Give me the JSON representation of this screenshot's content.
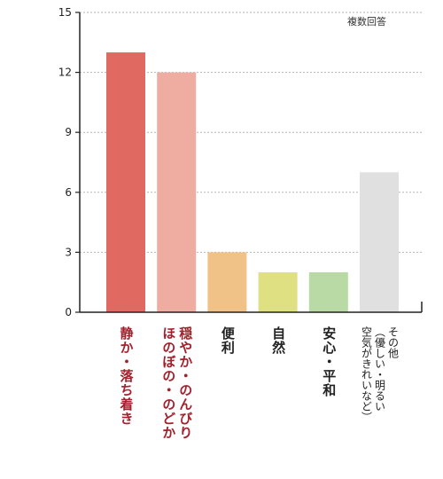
{
  "note": "複数回答",
  "chart_data": {
    "type": "bar",
    "categories": [
      "静か・落ち着き",
      "穏やか・のんびり\nほのぼの・のどか",
      "便利",
      "自然",
      "安心・平和",
      "その他\n（優しい・明るい\n空気がきれいなど）"
    ],
    "values": [
      13,
      12,
      3,
      2,
      2,
      7
    ],
    "colors": [
      "#e06a62",
      "#eeada0",
      "#f1c287",
      "#dfe081",
      "#b9d9a5",
      "#e0e0e0"
    ],
    "label_colors": [
      "#a3202c",
      "#a3202c",
      "#222222",
      "#222222",
      "#222222",
      "#222222"
    ],
    "yticks": [
      0,
      3,
      6,
      9,
      12,
      15
    ],
    "ylim": [
      0,
      15
    ],
    "grid": true,
    "title": "",
    "xlabel": "",
    "ylabel": ""
  }
}
